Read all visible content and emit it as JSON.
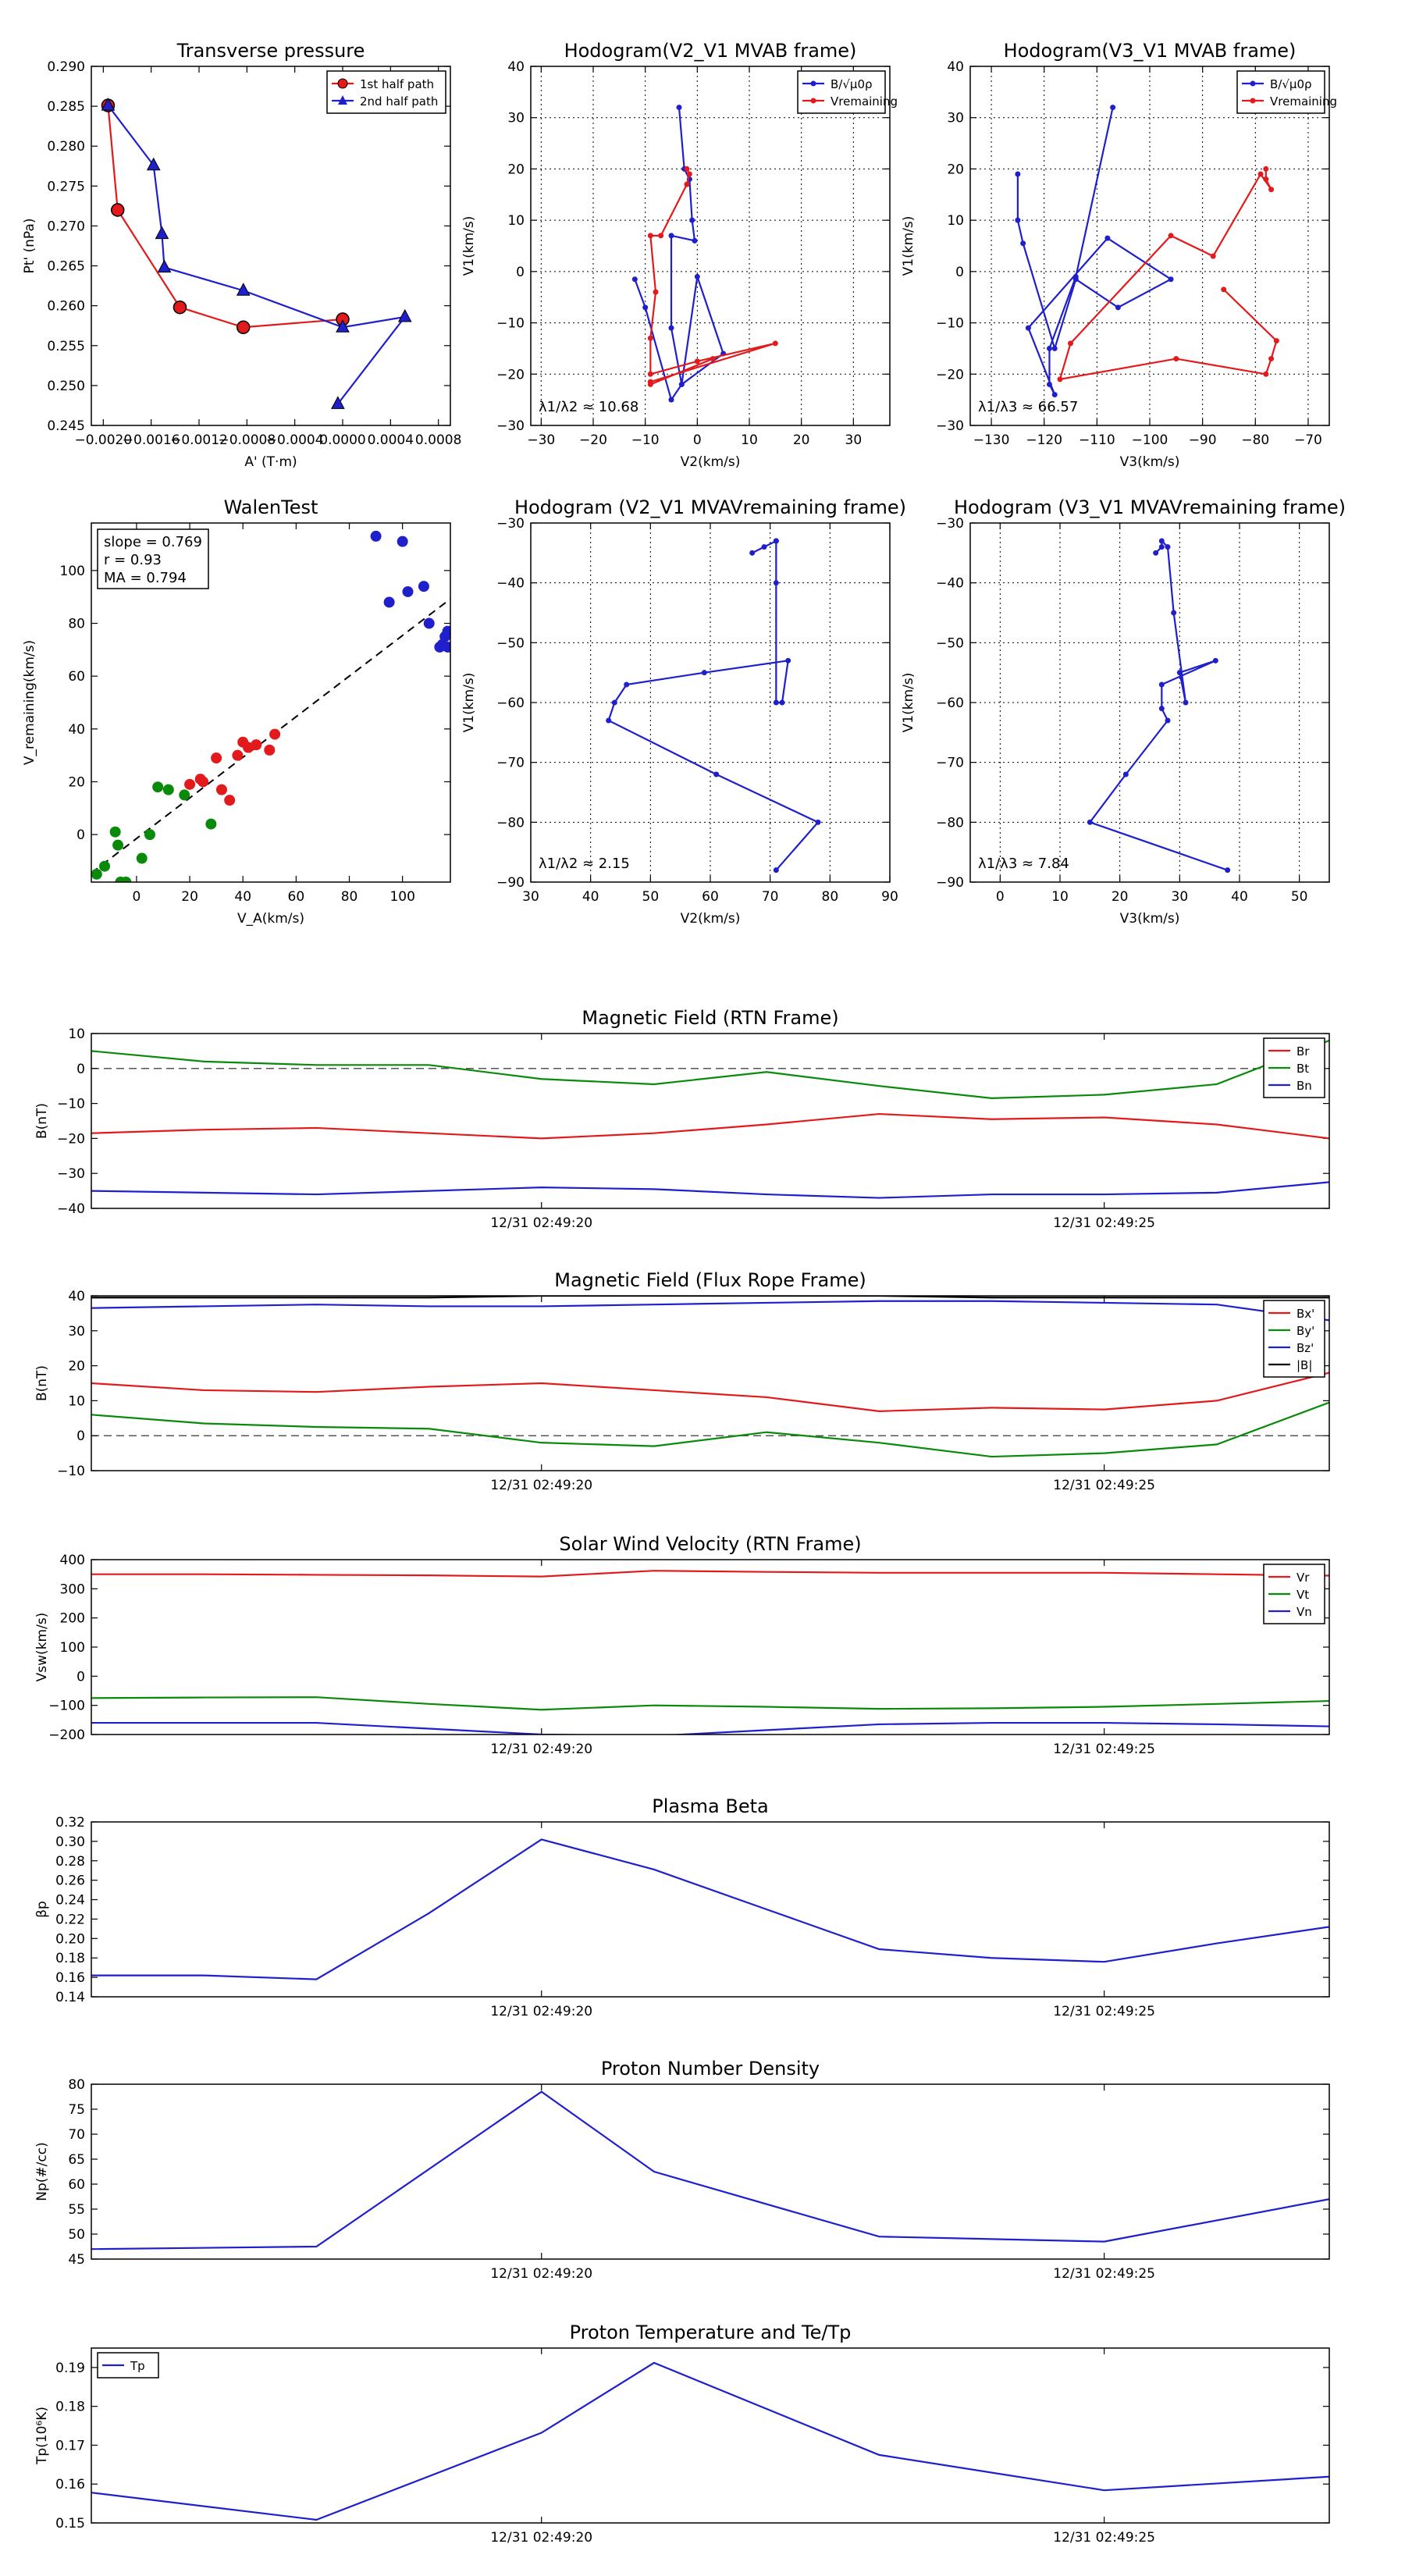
{
  "figure": {
    "background": "#ffffff"
  },
  "chart_data": [
    {
      "id": "tp",
      "type": "line",
      "title": "Transverse pressure",
      "xlabel": "A' (T·m)",
      "ylabel": "Pt' (nPa)",
      "xlim": [
        -0.0021,
        0.0009
      ],
      "ylim": [
        0.245,
        0.29
      ],
      "xticks": [
        -0.002,
        -0.0016,
        -0.0012,
        -0.0008,
        -0.0004,
        0.0,
        0.0004,
        0.0008
      ],
      "xticklabels": [
        "−0.0020",
        "−0.0016",
        "−0.0012",
        "−0.0008",
        "−0.0004",
        "0.0000",
        "0.0004",
        "0.0008"
      ],
      "yticks": [
        0.245,
        0.25,
        0.255,
        0.26,
        0.265,
        0.27,
        0.275,
        0.28,
        0.285,
        0.29
      ],
      "yticklabels": [
        "0.245",
        "0.250",
        "0.255",
        "0.260",
        "0.265",
        "0.270",
        "0.275",
        "0.280",
        "0.285",
        "0.290"
      ],
      "legend": "top-right",
      "series": [
        {
          "name": "1st half path",
          "color": "#e31a1c",
          "marker": "circle",
          "x": [
            -0.00196,
            -0.00188,
            -0.00136,
            -0.00083,
            0.0
          ],
          "y": [
            0.2851,
            0.272,
            0.2598,
            0.2573,
            0.2583
          ]
        },
        {
          "name": "2nd half path",
          "color": "#1f1fcc",
          "marker": "triangle",
          "x": [
            -0.00196,
            -0.00158,
            -0.00151,
            -0.00149,
            -0.00083,
            0.0,
            0.00052,
            -4e-05
          ],
          "y": [
            0.2851,
            0.2776,
            0.269,
            0.2648,
            0.2619,
            0.2573,
            0.2586,
            0.2477
          ]
        }
      ]
    },
    {
      "id": "hodo1",
      "type": "line",
      "title": "Hodogram(V2_V1 MVAB frame)",
      "xlabel": "V2(km/s)",
      "ylabel": "V1(km/s)",
      "xlim": [
        -32,
        37
      ],
      "ylim": [
        -30,
        40
      ],
      "xticks": [
        -30,
        -20,
        -10,
        0,
        10,
        20,
        30
      ],
      "yticks": [
        -30,
        -20,
        -10,
        0,
        10,
        20,
        30,
        40
      ],
      "grid": true,
      "legend": "top-right",
      "annotation": "λ1/λ2 ≈ 10.68",
      "series": [
        {
          "name": "B/√μ0ρ",
          "color": "#1f1fcc",
          "x": [
            -3.5,
            -2.5,
            -1.5,
            -1,
            -0.5,
            -5,
            -5,
            -3,
            0,
            5,
            -3,
            -5,
            -10,
            -12
          ],
          "y": [
            32,
            20,
            18,
            10,
            6,
            7,
            -11,
            -22,
            -1,
            -16,
            -22,
            -25,
            -7,
            -1.5
          ]
        },
        {
          "name": "Vremaining",
          "color": "#e31a1c",
          "x": [
            -2,
            -1.5,
            -2,
            -7,
            -9,
            -8,
            -9,
            -9,
            0,
            15,
            -9,
            -9,
            3
          ],
          "y": [
            20,
            19,
            17,
            7,
            7,
            -4,
            -13,
            -20,
            -17.5,
            -14,
            -21.5,
            -22,
            -17
          ]
        }
      ]
    },
    {
      "id": "hodo2",
      "type": "line",
      "title": "Hodogram(V3_V1 MVAB frame)",
      "xlabel": "V3(km/s)",
      "ylabel": "V1(km/s)",
      "xlim": [
        -134,
        -66
      ],
      "ylim": [
        -30,
        40
      ],
      "xticks": [
        -130,
        -120,
        -110,
        -100,
        -90,
        -80,
        -70
      ],
      "yticks": [
        -30,
        -20,
        -10,
        0,
        10,
        20,
        30,
        40
      ],
      "grid": true,
      "legend": "top-right",
      "annotation": "λ1/λ3 ≈ 66.57",
      "series": [
        {
          "name": "B/√μ0ρ",
          "color": "#1f1fcc",
          "x": [
            -107,
            -114,
            -119,
            -119,
            -118,
            -123,
            -108,
            -96,
            -106,
            -114,
            -118,
            -124,
            -125,
            -125
          ],
          "y": [
            32,
            -1,
            -15,
            -22,
            -24,
            -11,
            6.5,
            -1.5,
            -7,
            -1.5,
            -15,
            5.5,
            10,
            19
          ]
        },
        {
          "name": "Vremaining",
          "color": "#e31a1c",
          "x": [
            -78,
            -78,
            -77,
            -79,
            -88,
            -96,
            -115,
            -117,
            -95,
            -78,
            -77,
            -76,
            -86
          ],
          "y": [
            20,
            18,
            16,
            19,
            3,
            7,
            -14,
            -21,
            -17,
            -20,
            -17,
            -13.5,
            -3.5
          ]
        }
      ]
    },
    {
      "id": "walen",
      "type": "scatter",
      "title": "WalenTest",
      "xlabel": "V_A(km/s)",
      "ylabel": "V_remaining(km/s)",
      "xlim": [
        -17,
        118
      ],
      "ylim": [
        -18,
        118
      ],
      "xticks": [
        0,
        20,
        40,
        60,
        80,
        100
      ],
      "yticks": [
        0,
        20,
        40,
        60,
        80,
        100
      ],
      "annotation_lines": [
        "slope = 0.769",
        "r = 0.93",
        "MA = 0.794"
      ],
      "fit": {
        "slope": 0.769,
        "intercept": -1.5,
        "style": "dashed",
        "color": "#000000"
      },
      "series": [
        {
          "name": "green",
          "color": "#0a8a0a",
          "x": [
            -15,
            -12,
            -8,
            -7,
            -6,
            -4,
            2,
            5,
            8,
            12,
            18,
            28
          ],
          "y": [
            -15,
            -12,
            1,
            -4,
            -18,
            -18,
            -9,
            0,
            18,
            17,
            15,
            4
          ]
        },
        {
          "name": "red",
          "color": "#e31a1c",
          "x": [
            20,
            24,
            25,
            30,
            32,
            35,
            38,
            40,
            42,
            45,
            50,
            52
          ],
          "y": [
            19,
            21,
            20,
            29,
            17,
            13,
            30,
            35,
            33,
            34,
            32,
            38
          ]
        },
        {
          "name": "blue",
          "color": "#1f1fcc",
          "x": [
            90,
            95,
            100,
            102,
            108,
            110,
            114,
            115,
            116,
            117,
            117
          ],
          "y": [
            113,
            88,
            111,
            92,
            94,
            80,
            71,
            72,
            75,
            71,
            77
          ]
        }
      ]
    },
    {
      "id": "hodo3",
      "type": "line",
      "title": "Hodogram (V2_V1 MVAVremaining frame)",
      "xlabel": "V2(km/s)",
      "ylabel": "V1(km/s)",
      "xlim": [
        30,
        90
      ],
      "ylim": [
        -90,
        -30
      ],
      "xticks": [
        30,
        40,
        50,
        60,
        70,
        80,
        90
      ],
      "yticks": [
        -90,
        -80,
        -70,
        -60,
        -50,
        -40,
        -30
      ],
      "grid": true,
      "annotation": "λ1/λ2 ≈ 2.15",
      "series": [
        {
          "name": "hodogram",
          "color": "#1f1fcc",
          "x": [
            67,
            69,
            71,
            71,
            71,
            71,
            72,
            73,
            59,
            46,
            44,
            43,
            61,
            78,
            71
          ],
          "y": [
            -35,
            -34,
            -33,
            -33,
            -40,
            -60,
            -60,
            -53,
            -55,
            -57,
            -60,
            -63,
            -72,
            -80,
            -88
          ]
        }
      ]
    },
    {
      "id": "hodo4",
      "type": "line",
      "title": "Hodogram (V3_V1 MVAVremaining frame)",
      "xlabel": "V3(km/s)",
      "ylabel": "V1(km/s)",
      "xlim": [
        -5,
        55
      ],
      "ylim": [
        -90,
        -30
      ],
      "xticks": [
        0,
        10,
        20,
        30,
        40,
        50
      ],
      "yticks": [
        -90,
        -80,
        -70,
        -60,
        -50,
        -40,
        -30
      ],
      "grid": true,
      "annotation": "λ1/λ3 ≈ 7.84",
      "series": [
        {
          "name": "hodogram",
          "color": "#1f1fcc",
          "x": [
            26,
            27,
            27,
            28,
            29,
            31,
            30,
            36,
            27,
            27,
            28,
            21,
            15,
            38
          ],
          "y": [
            -35,
            -34,
            -33,
            -34,
            -45,
            -60,
            -55,
            -53,
            -57,
            -61,
            -63,
            -72,
            -80,
            -88
          ]
        }
      ]
    },
    {
      "id": "bfield",
      "type": "line",
      "title": "Magnetic Field (RTN Frame)",
      "ylabel": "B(nT)",
      "xlim": [
        -8,
        14
      ],
      "ylim": [
        -40,
        10
      ],
      "yticks": [
        -40,
        -30,
        -20,
        -10,
        0,
        10
      ],
      "xticks": [
        0,
        10
      ],
      "xticklabels": [
        "12/31 02:49:20",
        "12/31 02:49:25"
      ],
      "zero_line": true,
      "legend": "top-right",
      "x": [
        -8,
        -6,
        -4,
        -2,
        0,
        2,
        4,
        6,
        8,
        10,
        12,
        14
      ],
      "series": [
        {
          "name": "Br",
          "color": "#e31a1c",
          "values": [
            -18.5,
            -17.5,
            -17,
            -18.5,
            -20,
            -18.5,
            -16,
            -13,
            -14.5,
            -14,
            -16,
            -20
          ]
        },
        {
          "name": "Bt",
          "color": "#0a8a0a",
          "values": [
            5,
            2,
            1,
            1,
            -3,
            -4.5,
            -1,
            -5,
            -8.5,
            -7.5,
            -4.5,
            8
          ]
        },
        {
          "name": "Bn",
          "color": "#1f1fcc",
          "values": [
            -35,
            -35.5,
            -36,
            -35,
            -34,
            -34.5,
            -36,
            -37,
            -36,
            -36,
            -35.5,
            -32.5
          ]
        }
      ]
    },
    {
      "id": "bflux",
      "type": "line",
      "title": "Magnetic Field (Flux Rope Frame)",
      "ylabel": "B(nT)",
      "xlim": [
        -8,
        14
      ],
      "ylim": [
        -10,
        40
      ],
      "yticks": [
        -10,
        0,
        10,
        20,
        30,
        40
      ],
      "xticks": [
        0,
        10
      ],
      "xticklabels": [
        "12/31 02:49:20",
        "12/31 02:49:25"
      ],
      "zero_line": true,
      "legend": "top-right",
      "x": [
        -8,
        -6,
        -4,
        -2,
        0,
        2,
        4,
        6,
        8,
        10,
        12,
        14
      ],
      "series": [
        {
          "name": "Bx'",
          "color": "#e31a1c",
          "values": [
            15,
            13,
            12.5,
            14,
            15,
            13,
            11,
            7,
            8,
            7.5,
            10,
            18
          ]
        },
        {
          "name": "By'",
          "color": "#0a8a0a",
          "values": [
            6,
            3.5,
            2.5,
            2,
            -2,
            -3,
            1,
            -2,
            -6,
            -5,
            -2.5,
            9.5
          ]
        },
        {
          "name": "Bz'",
          "color": "#1f1fcc",
          "values": [
            36.5,
            37,
            37.5,
            37,
            37,
            37.5,
            38,
            38.5,
            38.5,
            38,
            37.5,
            33
          ]
        },
        {
          "name": "|B|",
          "color": "#000000",
          "values": [
            39.5,
            39.5,
            39.5,
            39.5,
            40,
            40,
            40,
            40,
            39.5,
            39.5,
            39.5,
            39.5
          ]
        }
      ]
    },
    {
      "id": "vel",
      "type": "line",
      "title": "Solar Wind Velocity (RTN Frame)",
      "ylabel": "Vsw(km/s)",
      "xlim": [
        -8,
        14
      ],
      "ylim": [
        -200,
        400
      ],
      "yticks": [
        -200,
        -100,
        0,
        100,
        200,
        300,
        400
      ],
      "xticks": [
        0,
        10
      ],
      "xticklabels": [
        "12/31 02:49:20",
        "12/31 02:49:25"
      ],
      "legend": "top-right",
      "x": [
        -8,
        -6,
        -4,
        -2,
        0,
        2,
        4,
        6,
        8,
        10,
        12,
        14
      ],
      "series": [
        {
          "name": "Vr",
          "color": "#e31a1c",
          "values": [
            350,
            350,
            348,
            346,
            342,
            362,
            358,
            355,
            355,
            355,
            350,
            345
          ]
        },
        {
          "name": "Vt",
          "color": "#0a8a0a",
          "values": [
            -75,
            -73,
            -72,
            -95,
            -115,
            -100,
            -105,
            -112,
            -110,
            -105,
            -95,
            -85
          ]
        },
        {
          "name": "Vn",
          "color": "#1f1fcc",
          "values": [
            -160,
            -160,
            -160,
            -180,
            -200,
            -205,
            -185,
            -165,
            -160,
            -160,
            -165,
            -172
          ]
        }
      ]
    },
    {
      "id": "beta",
      "type": "line",
      "title": "Plasma Beta",
      "ylabel": "βp",
      "xlim": [
        -8,
        14
      ],
      "ylim": [
        0.14,
        0.32
      ],
      "yticks": [
        0.14,
        0.16,
        0.18,
        0.2,
        0.22,
        0.24,
        0.26,
        0.28,
        0.3,
        0.32
      ],
      "yticklabels": [
        "0.14",
        "0.16",
        "0.18",
        "0.20",
        "0.22",
        "0.24",
        "0.26",
        "0.28",
        "0.30",
        "0.32"
      ],
      "xticks": [
        0,
        10
      ],
      "xticklabels": [
        "12/31 02:49:20",
        "12/31 02:49:25"
      ],
      "x": [
        -8,
        -6,
        -4,
        -2,
        0,
        2,
        4,
        6,
        8,
        10,
        12,
        14
      ],
      "series": [
        {
          "name": "beta",
          "color": "#1f1fcc",
          "values": [
            0.162,
            0.162,
            0.158,
            0.226,
            0.302,
            0.271,
            0.23,
            0.189,
            0.18,
            0.176,
            0.195,
            0.212
          ]
        }
      ]
    },
    {
      "id": "np",
      "type": "line",
      "title": "Proton Number Density",
      "ylabel": "Np(#/cc)",
      "xlim": [
        -8,
        14
      ],
      "ylim": [
        45,
        80
      ],
      "yticks": [
        45,
        50,
        55,
        60,
        65,
        70,
        75,
        80
      ],
      "xticks": [
        0,
        10
      ],
      "xticklabels": [
        "12/31 02:49:20",
        "12/31 02:49:25"
      ],
      "x": [
        -8,
        -4,
        0,
        2,
        6,
        10,
        14
      ],
      "series": [
        {
          "name": "Np",
          "color": "#1f1fcc",
          "values": [
            47,
            47.5,
            78.5,
            62.5,
            49.5,
            48.5,
            57
          ]
        }
      ]
    },
    {
      "id": "temp",
      "type": "line",
      "title": "Proton Temperature and Te/Tp",
      "ylabel": "Tp(10⁶K)",
      "xlim": [
        -8,
        14
      ],
      "ylim": [
        0.15,
        0.195
      ],
      "yticks": [
        0.15,
        0.16,
        0.17,
        0.18,
        0.19
      ],
      "xticks": [
        0,
        10
      ],
      "xticklabels": [
        "12/31 02:49:20",
        "12/31 02:49:25"
      ],
      "legend": "top-left",
      "x": [
        -8,
        -4,
        0,
        2,
        6,
        10,
        14
      ],
      "series": [
        {
          "name": "Tp",
          "color": "#1f1fcc",
          "values": [
            0.1578,
            0.1508,
            0.1732,
            0.1912,
            0.1675,
            0.1584,
            0.1619
          ]
        }
      ]
    }
  ]
}
